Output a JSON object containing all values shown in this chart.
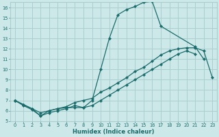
{
  "xlabel": "Humidex (Indice chaleur)",
  "xlim": [
    -0.5,
    23.5
  ],
  "ylim": [
    5,
    16.5
  ],
  "xticks": [
    0,
    1,
    2,
    3,
    4,
    5,
    6,
    7,
    8,
    9,
    10,
    11,
    12,
    13,
    14,
    15,
    16,
    17,
    18,
    19,
    20,
    21,
    22,
    23
  ],
  "yticks": [
    5,
    6,
    7,
    8,
    9,
    10,
    11,
    12,
    13,
    14,
    15,
    16
  ],
  "bg_color": "#cce8e8",
  "grid_color": "#aacece",
  "line_color": "#1a6b6b",
  "line1_x": [
    0,
    1,
    2,
    3,
    4,
    5,
    6,
    7,
    8,
    9,
    10,
    11,
    12,
    13,
    14,
    15,
    16,
    17,
    21,
    22
  ],
  "line1_y": [
    7.0,
    6.6,
    6.2,
    5.5,
    6.0,
    6.2,
    6.3,
    6.3,
    6.3,
    7.0,
    10.0,
    13.0,
    15.3,
    15.8,
    16.1,
    16.5,
    16.6,
    14.2,
    12.2,
    11.0
  ],
  "line2_x": [
    0,
    1,
    2,
    3,
    4,
    5,
    6,
    7,
    8,
    9,
    10,
    11,
    12,
    13,
    14,
    15,
    16,
    17,
    18,
    19,
    20,
    21,
    22,
    23
  ],
  "line2_y": [
    7.0,
    6.6,
    6.2,
    5.8,
    6.0,
    6.2,
    6.4,
    6.8,
    7.0,
    7.2,
    7.8,
    8.2,
    8.7,
    9.2,
    9.8,
    10.2,
    10.8,
    11.4,
    11.8,
    12.0,
    12.1,
    12.1,
    11.8,
    9.2
  ],
  "line3_x": [
    0,
    1,
    2,
    3,
    4,
    5,
    6,
    7,
    8,
    9,
    10,
    11,
    12,
    13,
    14,
    15,
    16,
    17,
    18,
    19,
    20,
    21
  ],
  "line3_y": [
    7.0,
    6.5,
    6.1,
    5.5,
    5.8,
    6.0,
    6.2,
    6.5,
    6.3,
    6.5,
    7.0,
    7.5,
    8.0,
    8.5,
    9.0,
    9.5,
    10.0,
    10.5,
    11.0,
    11.5,
    11.8,
    11.5
  ]
}
